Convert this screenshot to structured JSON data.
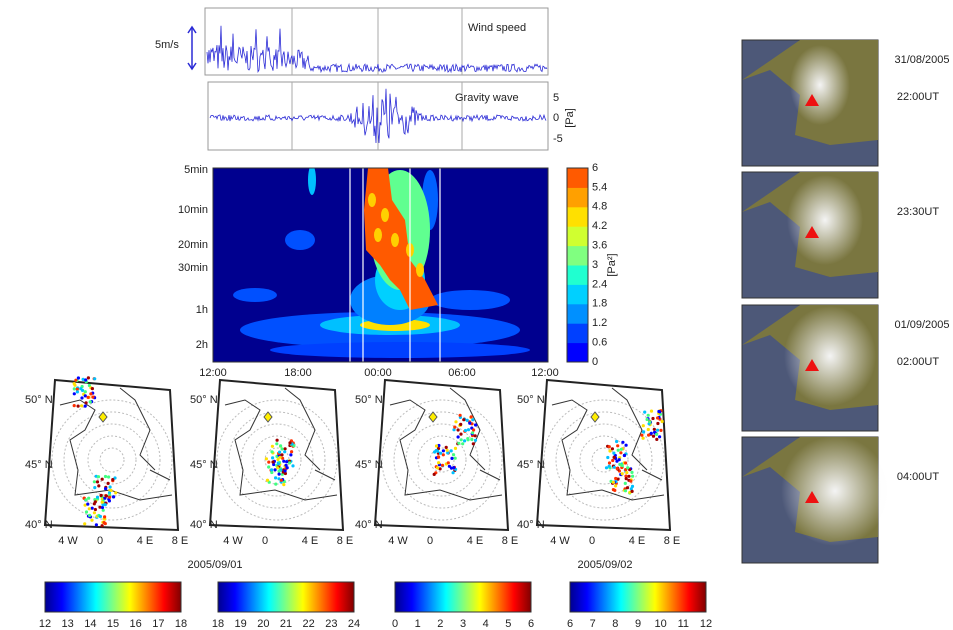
{
  "wind_panel": {
    "label": "Wind speed",
    "scale": "5m/s"
  },
  "gravity_panel": {
    "label": "Gravity wave",
    "ticks": [
      5,
      0,
      -5
    ],
    "unit": "[Pa]"
  },
  "spectrogram": {
    "yticks": [
      "5min",
      "10min",
      "20min",
      "30min",
      "1h",
      "2h"
    ],
    "xticks": [
      "12:00",
      "18:00",
      "00:00",
      "06:00",
      "12:00"
    ],
    "colorbar_ticks": [
      0,
      0.6,
      1.2,
      1.8,
      2.4,
      3,
      3.6,
      4.2,
      4.8,
      5.4,
      6
    ],
    "colorbar_unit": "[Pa²]"
  },
  "map_axes": {
    "lat": [
      "50° N",
      "45° N",
      "40° N"
    ],
    "lon": [
      "4 W",
      "0",
      "4 E",
      "8 E"
    ]
  },
  "dates": [
    "2005/09/01",
    "2005/09/02"
  ],
  "colorbars": [
    [
      12,
      13,
      14,
      15,
      16,
      17,
      18
    ],
    [
      18,
      19,
      20,
      21,
      22,
      23,
      24
    ],
    [
      0,
      1,
      2,
      3,
      4,
      5,
      6
    ],
    [
      6,
      7,
      8,
      9,
      10,
      11,
      12
    ]
  ],
  "satellite": [
    {
      "date": "31/08/2005",
      "time": "22:00UT"
    },
    {
      "time": "23:30UT"
    },
    {
      "date": "01/09/2005",
      "time": "02:00UT"
    },
    {
      "time": "04:00UT"
    }
  ]
}
